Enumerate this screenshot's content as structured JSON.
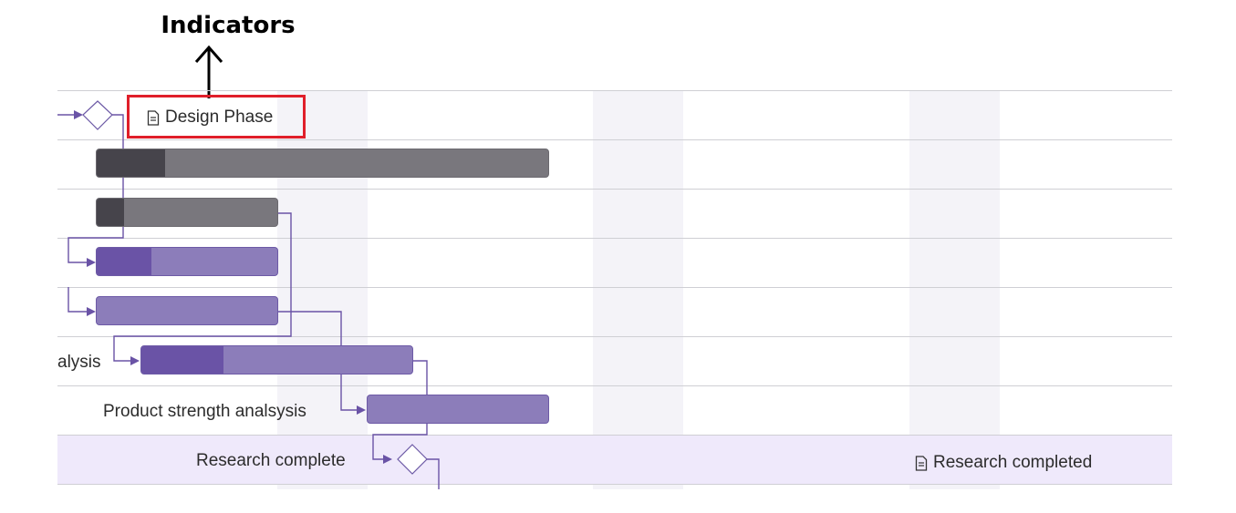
{
  "callout": {
    "title": "Indicators"
  },
  "indicators": {
    "design_phase": "Design Phase",
    "research_completed": "Research completed",
    "icon": "document-icon"
  },
  "tasks": [
    {
      "name": "",
      "label": "",
      "type": "milestone",
      "progress": 0
    },
    {
      "name": "",
      "label": "",
      "type": "parent",
      "progress": 0.15
    },
    {
      "name": "",
      "label": "",
      "type": "parent",
      "progress": 0.15
    },
    {
      "name": "",
      "label": "",
      "type": "task",
      "progress": 0.3
    },
    {
      "name": "",
      "label": "",
      "type": "task",
      "progress": 0
    },
    {
      "name": "Market research analysis",
      "label": "alysis",
      "type": "task",
      "progress": 0.3
    },
    {
      "name": "Product strength analsysis",
      "label": "Product strength analsysis",
      "type": "task",
      "progress": 0
    },
    {
      "name": "Research complete",
      "label": "Research complete",
      "type": "milestone",
      "progress": 0
    }
  ],
  "colors": {
    "accent": "#6a53a6",
    "task_bar": "#8c7dba",
    "parent_bar": "#79777d",
    "parent_progress": "#46444b",
    "highlight_row": "#efe9fb",
    "callout_border": "#e01f2a"
  }
}
